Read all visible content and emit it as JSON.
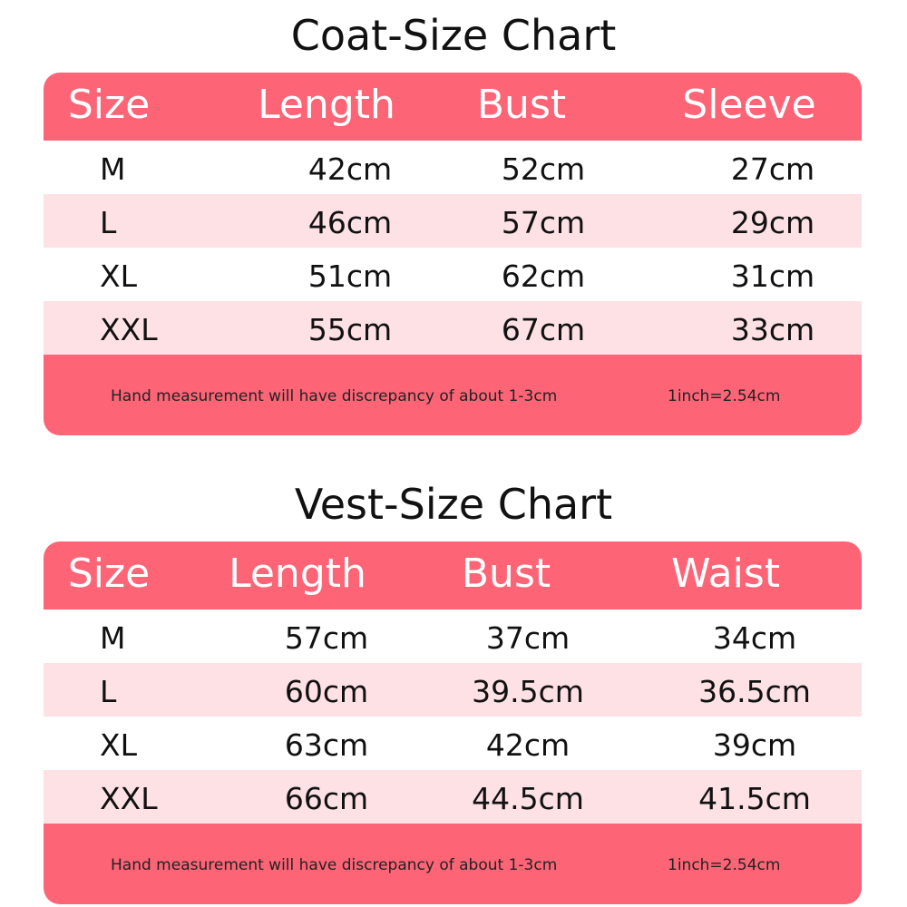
{
  "charts": [
    {
      "title": "Coat-Size Chart",
      "headers": [
        "Size",
        "Length",
        "Bust",
        "Sleeve"
      ],
      "rows": [
        [
          "M",
          "42cm",
          "52cm",
          "27cm"
        ],
        [
          "L",
          "46cm",
          "57cm",
          "29cm"
        ],
        [
          "XL",
          "51cm",
          "62cm",
          "31cm"
        ],
        [
          "XXL",
          "55cm",
          "67cm",
          "33cm"
        ]
      ],
      "note": "Hand measurement will have discrepancy of about 1-3cm",
      "conversion": "1inch=2.54cm"
    },
    {
      "title": "Vest-Size  Chart",
      "headers": [
        "Size",
        "Length",
        "Bust",
        "Waist"
      ],
      "rows": [
        [
          "M",
          "57cm",
          "37cm",
          "34cm"
        ],
        [
          "L",
          "60cm",
          "39.5cm",
          "36.5cm"
        ],
        [
          "XL",
          "63cm",
          "42cm",
          "39cm"
        ],
        [
          "XXL",
          "66cm",
          "44.5cm",
          "41.5cm"
        ]
      ],
      "note": "Hand measurement will have discrepancy of about 1-3cm",
      "conversion": "1inch=2.54cm"
    }
  ],
  "colors": {
    "header": "#fd6577",
    "alt_row": "#fde1e5"
  }
}
